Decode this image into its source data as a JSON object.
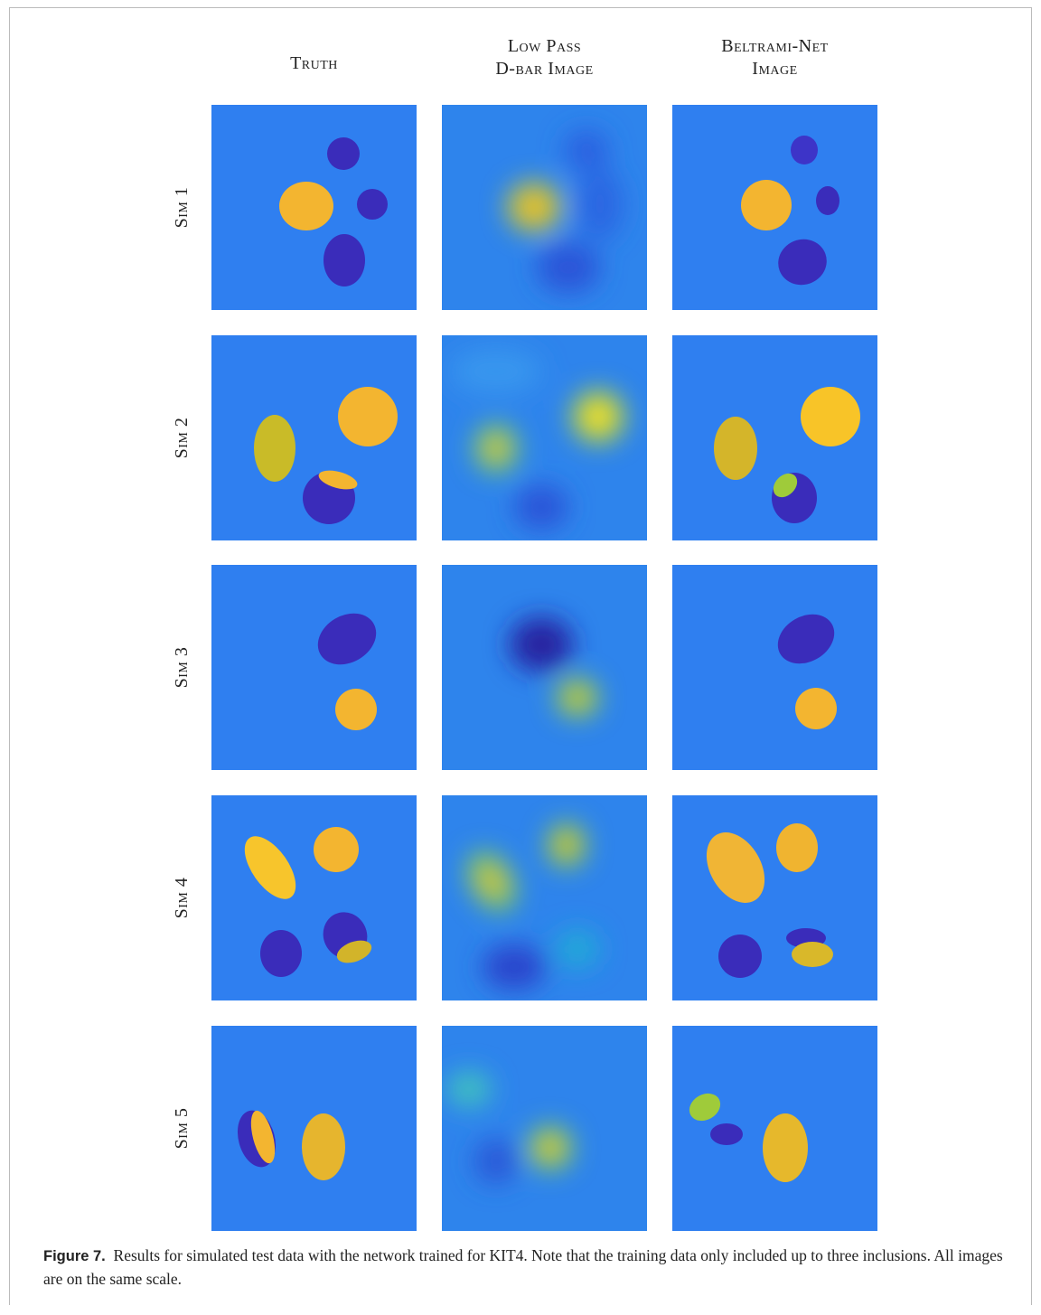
{
  "figure": {
    "column_headers": [
      {
        "lines": [
          "Truth"
        ]
      },
      {
        "lines": [
          "Low Pass",
          "D-bar Image"
        ]
      },
      {
        "lines": [
          "Beltrami-Net",
          "Image"
        ]
      }
    ],
    "row_labels": [
      "Sim 1",
      "Sim 2",
      "Sim 3",
      "Sim 4",
      "Sim 5"
    ],
    "caption": {
      "label": "Figure 7.",
      "text": "Results for simulated test data with the network trained for KIT4. Note that the training data only included up to three inclusions. All images are on the same scale."
    }
  }
}
